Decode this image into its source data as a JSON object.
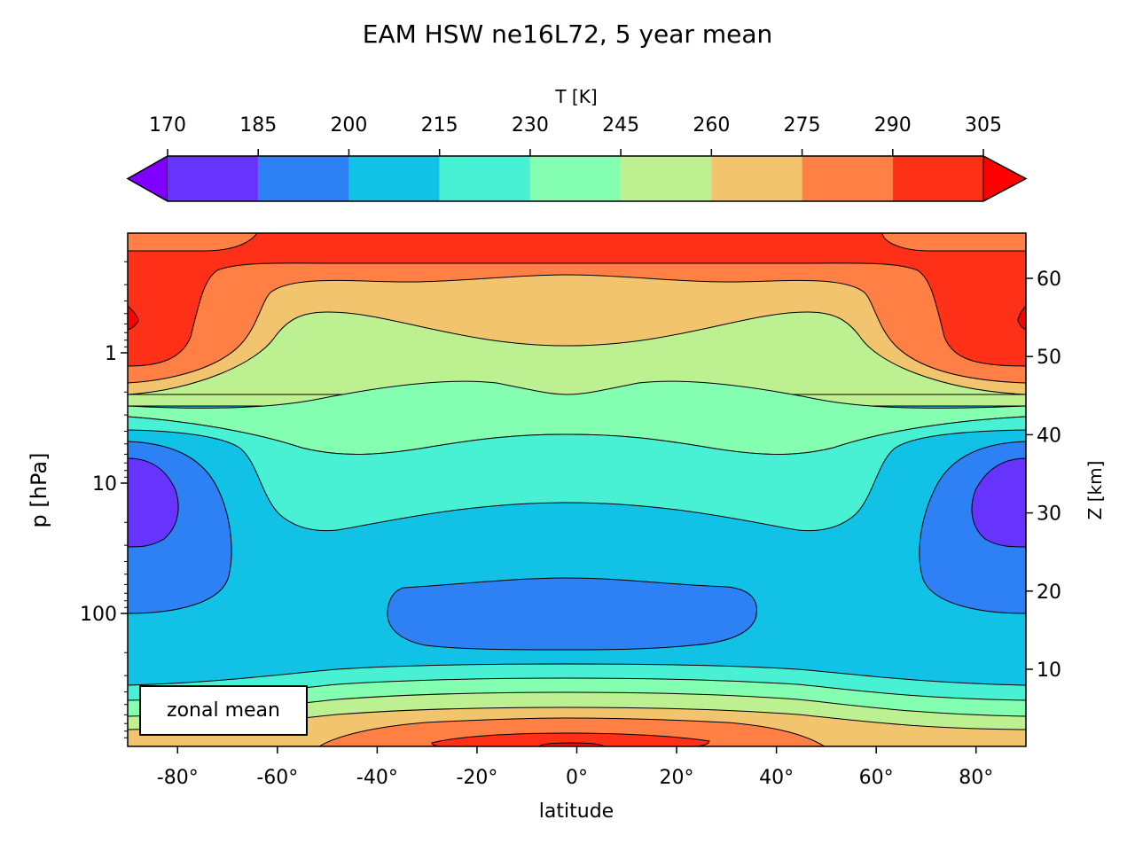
{
  "chart_data": {
    "type": "heatmap",
    "title": "EAM HSW ne16L72, 5 year mean",
    "xlabel": "latitude",
    "ylabel": "p  [hPa]",
    "ylabel_right": "Z [km]",
    "xlim": [
      -90,
      90
    ],
    "ylim_hPa": [
      1000,
      0.1
    ],
    "y_scale": "log",
    "x_ticks": [
      -80,
      -60,
      -40,
      -20,
      0,
      20,
      40,
      60,
      80
    ],
    "x_tick_labels": [
      "-80°",
      "-60°",
      "-40°",
      "-20°",
      "0°",
      "20°",
      "40°",
      "60°",
      "80°"
    ],
    "y_ticks_hPa": [
      1,
      10,
      100
    ],
    "y_tick_labels": [
      "1",
      "10",
      "100"
    ],
    "z_ticks_km": [
      10,
      20,
      30,
      40,
      50,
      60
    ],
    "z_tick_labels": [
      "10",
      "20",
      "30",
      "40",
      "50",
      "60"
    ],
    "annotation": "zonal mean",
    "colorbar": {
      "label": "T [K]",
      "placement": "top",
      "extend": "both",
      "levels": [
        170,
        185,
        200,
        215,
        230,
        245,
        260,
        275,
        290,
        305
      ],
      "level_labels": [
        "170",
        "185",
        "200",
        "215",
        "230",
        "245",
        "260",
        "275",
        "290",
        "305"
      ],
      "under_color": "#8000ff",
      "bin_colors": [
        "#6633ff",
        "#2e80f5",
        "#12c2e6",
        "#48f0d4",
        "#84ffb2",
        "#bcf090",
        "#f2c46e",
        "#ff7f44",
        "#ff3018"
      ],
      "over_color": "#ff0000"
    },
    "series": [
      {
        "level": 170,
        "points": [
          [
            -90,
            7
          ],
          [
            -80,
            8
          ],
          [
            -78,
            12
          ],
          [
            -82,
            20
          ],
          [
            -90,
            21
          ]
        ]
      },
      {
        "level": 170,
        "points": [
          [
            90,
            7
          ],
          [
            80,
            8
          ],
          [
            78,
            12
          ],
          [
            82,
            20
          ],
          [
            90,
            21
          ]
        ]
      }
    ]
  }
}
